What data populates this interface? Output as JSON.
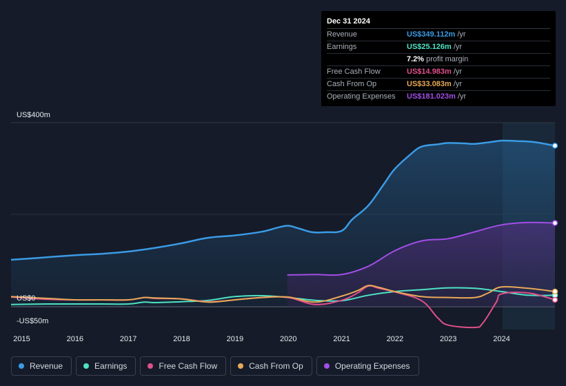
{
  "tooltip": {
    "date": "Dec 31 2024",
    "rows": [
      {
        "label": "Revenue",
        "value": "US$349.112m",
        "unit": "/yr",
        "color": "#3b9be6"
      },
      {
        "label": "Earnings",
        "value": "US$25.126m",
        "unit": "/yr",
        "color": "#4fe3c5"
      },
      {
        "label": "",
        "value": "7.2%",
        "unit": "profit margin",
        "color": "#ffffff"
      },
      {
        "label": "Free Cash Flow",
        "value": "US$14.983m",
        "unit": "/yr",
        "color": "#e0508a"
      },
      {
        "label": "Cash From Op",
        "value": "US$33.083m",
        "unit": "/yr",
        "color": "#e8a958"
      },
      {
        "label": "Operating Expenses",
        "value": "US$181.023m",
        "unit": "/yr",
        "color": "#a24ee8"
      }
    ]
  },
  "legend": [
    {
      "label": "Revenue",
      "color": "#3b9be6"
    },
    {
      "label": "Earnings",
      "color": "#4fe3c5"
    },
    {
      "label": "Free Cash Flow",
      "color": "#e0508a"
    },
    {
      "label": "Cash From Op",
      "color": "#e8a958"
    },
    {
      "label": "Operating Expenses",
      "color": "#a24ee8"
    }
  ],
  "chart_data": {
    "type": "area",
    "ylim": [
      -50,
      400
    ],
    "ytick_labels": {
      "top": "US$400m",
      "zero": "US$0",
      "bottom": "-US$50m"
    },
    "xlim": [
      2014.8,
      2025.0
    ],
    "xticks": [
      2015,
      2016,
      2017,
      2018,
      2019,
      2020,
      2021,
      2022,
      2023,
      2024
    ],
    "series": [
      {
        "name": "Revenue",
        "color": "#3b9be6",
        "fill": true,
        "x": [
          2014.8,
          2015.3,
          2016.0,
          2016.5,
          2017.0,
          2017.5,
          2018.0,
          2018.5,
          2019.0,
          2019.5,
          2019.8,
          2020.0,
          2020.2,
          2020.45,
          2020.7,
          2021.0,
          2021.2,
          2021.5,
          2021.8,
          2022.0,
          2022.3,
          2022.5,
          2022.8,
          2023.0,
          2023.3,
          2023.5,
          2023.8,
          2024.0,
          2024.3,
          2024.6,
          2025.0
        ],
        "values": [
          102,
          106,
          112,
          115,
          120,
          128,
          138,
          150,
          155,
          163,
          172,
          176,
          170,
          162,
          162,
          165,
          190,
          220,
          268,
          300,
          332,
          348,
          353,
          356,
          355,
          354,
          358,
          361,
          360,
          358,
          350
        ]
      },
      {
        "name": "Operating Expenses",
        "color": "#a24ee8",
        "fill": true,
        "x": [
          2019.98,
          2020.5,
          2021.0,
          2021.5,
          2022.0,
          2022.5,
          2023.0,
          2023.5,
          2024.0,
          2024.5,
          2025.0
        ],
        "values": [
          69,
          70,
          70,
          88,
          122,
          143,
          148,
          163,
          178,
          183,
          182
        ]
      },
      {
        "name": "Earnings",
        "color": "#4fe3c5",
        "fill": false,
        "x": [
          2014.8,
          2015.5,
          2016.0,
          2016.5,
          2017.0,
          2017.3,
          2017.5,
          2018.0,
          2018.5,
          2019.0,
          2019.5,
          2020.0,
          2020.5,
          2021.0,
          2021.5,
          2022.0,
          2022.5,
          2023.0,
          2023.5,
          2024.0,
          2024.5,
          2025.0
        ],
        "values": [
          5,
          6,
          6,
          6,
          6,
          10,
          9,
          11,
          14,
          22,
          24,
          20,
          14,
          13,
          25,
          33,
          37,
          41,
          40,
          33,
          25,
          25
        ]
      },
      {
        "name": "Free Cash Flow",
        "color": "#e0508a",
        "fill": false,
        "x": [
          2014.8,
          2015.5,
          2016.0,
          2016.5,
          2017.0,
          2017.3,
          2017.5,
          2018.0,
          2018.5,
          2019.0,
          2019.5,
          2020.0,
          2020.5,
          2021.0,
          2021.3,
          2021.5,
          2021.7,
          2022.0,
          2022.5,
          2022.8,
          2023.0,
          2023.5,
          2023.65,
          2023.9,
          2024.0,
          2024.5,
          2025.0
        ],
        "values": [
          21,
          16,
          15,
          15,
          15,
          20,
          18,
          17,
          11,
          15,
          20,
          20,
          5,
          14,
          30,
          45,
          40,
          32,
          13,
          -24,
          -40,
          -45,
          -35,
          10,
          28,
          30,
          15
        ]
      },
      {
        "name": "Cash From Op",
        "color": "#e8a958",
        "fill": false,
        "x": [
          2014.8,
          2015.5,
          2016.0,
          2016.5,
          2017.0,
          2017.3,
          2017.5,
          2018.0,
          2018.5,
          2019.0,
          2019.5,
          2020.0,
          2020.5,
          2021.0,
          2021.3,
          2021.5,
          2021.7,
          2022.0,
          2022.5,
          2023.0,
          2023.5,
          2023.75,
          2024.0,
          2024.5,
          2025.0
        ],
        "values": [
          22,
          18,
          15,
          15,
          15,
          20,
          19,
          17,
          10,
          15,
          20,
          21,
          10,
          23,
          35,
          46,
          42,
          33,
          22,
          20,
          20,
          30,
          43,
          40,
          33
        ]
      }
    ]
  }
}
